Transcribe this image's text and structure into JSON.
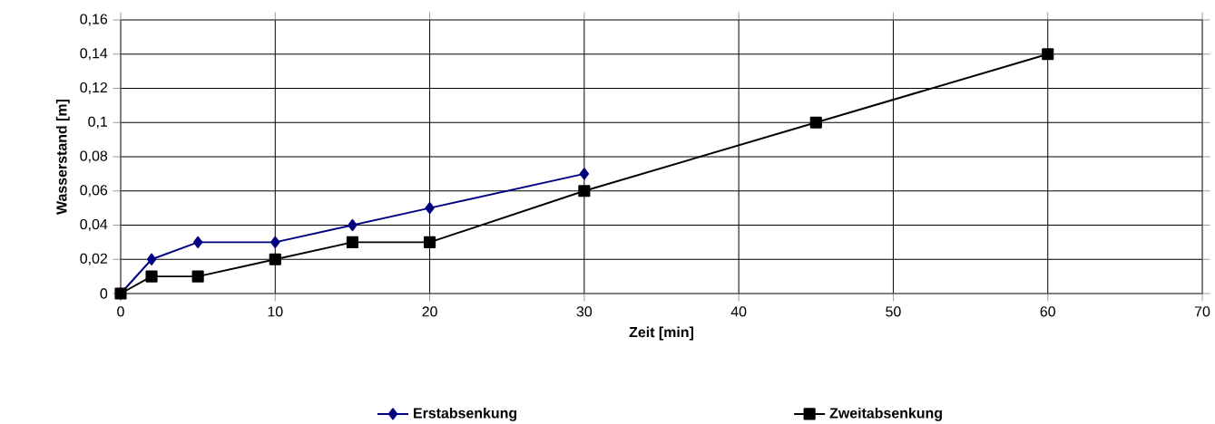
{
  "chart_data": {
    "type": "line",
    "xlabel": "Zeit [min]",
    "ylabel": "Wasserstand  [m]",
    "xlim": [
      0,
      70
    ],
    "xticks": [
      0,
      10,
      20,
      30,
      40,
      50,
      60,
      70
    ],
    "ylim": [
      0,
      0.16
    ],
    "yticks": [
      {
        "value": 0,
        "label": "0"
      },
      {
        "value": 0.02,
        "label": "0,02"
      },
      {
        "value": 0.04,
        "label": "0,04"
      },
      {
        "value": 0.06,
        "label": "0,06"
      },
      {
        "value": 0.08,
        "label": "0,08"
      },
      {
        "value": 0.1,
        "label": "0,1"
      },
      {
        "value": 0.12,
        "label": "0,12"
      },
      {
        "value": 0.14,
        "label": "0,14"
      },
      {
        "value": 0.16,
        "label": "0,16"
      }
    ],
    "grid": true,
    "legend": "bottom",
    "line_style": "solid",
    "series": [
      {
        "name": "Erstabsenkung",
        "color": "#000080",
        "marker": "diamond",
        "x": [
          0,
          2,
          5,
          10,
          15,
          20,
          30
        ],
        "values": [
          0,
          0.02,
          0.03,
          0.03,
          0.04,
          0.05,
          0.07
        ]
      },
      {
        "name": "Zweitabsenkung",
        "color": "#000000",
        "marker": "square",
        "x": [
          0,
          2,
          5,
          10,
          15,
          20,
          30,
          45,
          60
        ],
        "values": [
          0,
          0.01,
          0.01,
          0.02,
          0.03,
          0.03,
          0.06,
          0.1,
          0.14
        ]
      }
    ]
  }
}
